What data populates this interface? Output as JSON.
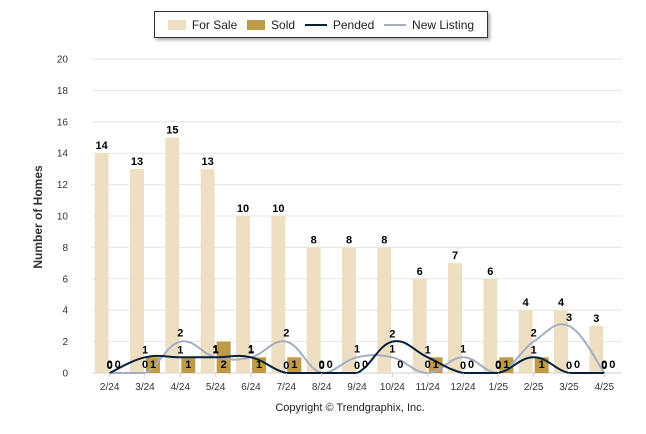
{
  "legend": {
    "for_sale": "For Sale",
    "sold": "Sold",
    "pended": "Pended",
    "new_listing": "New Listing"
  },
  "copyright": "Copyright © Trendgraphix, Inc.",
  "colors": {
    "for_sale": "#efdfc2",
    "sold": "#bf9b47",
    "pended": "#0a1f3a",
    "new_listing": "#a3aec0",
    "grid": "#e6e6e6"
  },
  "chart_data": {
    "type": "bar",
    "ylabel": "Number of Homes",
    "xlabel": "",
    "ylim": [
      0,
      20
    ],
    "yticks": [
      0,
      2,
      4,
      6,
      8,
      10,
      12,
      14,
      16,
      18,
      20
    ],
    "categories": [
      "2/24",
      "3/24",
      "4/24",
      "5/24",
      "6/24",
      "7/24",
      "8/24",
      "9/24",
      "10/24",
      "11/24",
      "12/24",
      "1/25",
      "2/25",
      "3/25",
      "4/25"
    ],
    "legend_position": "top-center",
    "grid": true,
    "series": [
      {
        "name": "For Sale",
        "kind": "bar",
        "values": [
          14,
          13,
          15,
          13,
          10,
          10,
          8,
          8,
          8,
          6,
          7,
          6,
          4,
          4,
          3
        ]
      },
      {
        "name": "Sold",
        "kind": "bar",
        "values": [
          0,
          1,
          1,
          2,
          1,
          1,
          0,
          0,
          0,
          1,
          0,
          1,
          1,
          0,
          0
        ]
      },
      {
        "name": "Pended",
        "kind": "line",
        "values": [
          0,
          1,
          1,
          1,
          1,
          0,
          0,
          0,
          2,
          1,
          0,
          0,
          1,
          0,
          0
        ]
      },
      {
        "name": "New Listing",
        "kind": "line",
        "values": [
          0,
          0,
          2,
          1,
          1,
          2,
          0,
          1,
          1,
          0,
          1,
          0,
          2,
          3,
          0
        ]
      }
    ]
  }
}
